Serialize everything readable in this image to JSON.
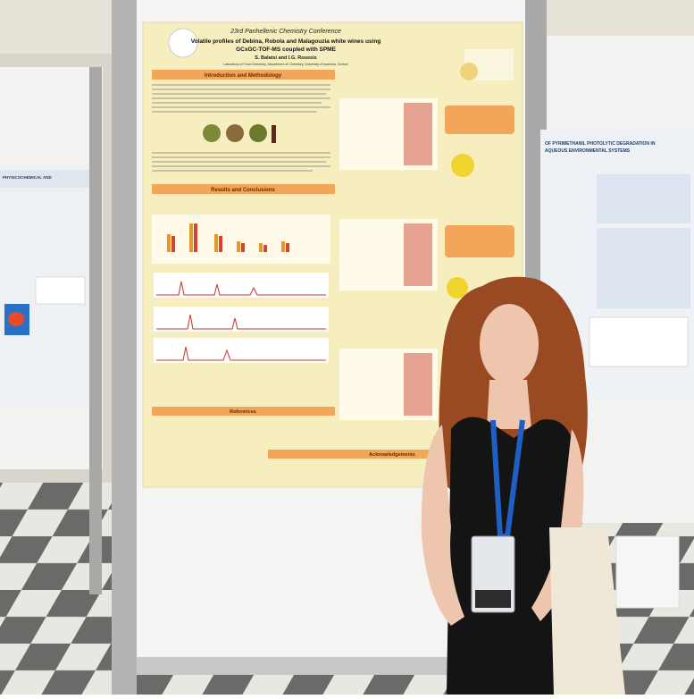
{
  "poster": {
    "conference": "23rd Panhellenic Chemistry Conference",
    "title_lines": [
      "Volatile profiles of Debina, Robola and Malagouzia white wines using",
      "GCxGC-TOF-MS coupled with SPME"
    ],
    "authors": "S. Balatsi and I.G. Roussis",
    "affiliation": "Laboratory of Food Chemistry, Department of Chemistry, University of Ioannina, Greece",
    "sections": [
      "Introduction and Methodology",
      "Results and Conclusions",
      "References",
      "Acknowledgements"
    ]
  },
  "right_poster": {
    "title_lines": [
      "OF PYRIMETHANIL PHOTOLYTIC DEGRADATION IN",
      "AQUEOUS ENVIRONMENTAL SYSTEMS"
    ]
  },
  "left_poster": {
    "title": "PHYSICOCHEMICAL AND"
  }
}
